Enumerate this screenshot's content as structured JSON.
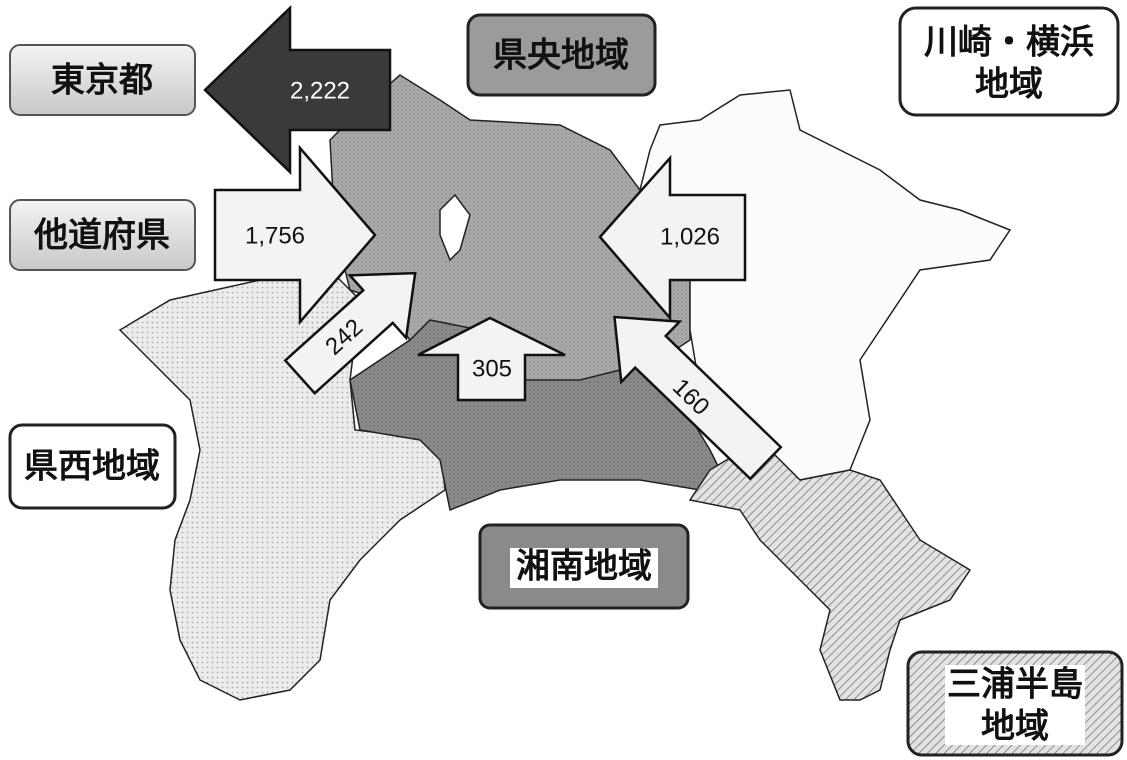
{
  "regions": {
    "tokyo": "東京都",
    "other_prefectures": "他道府県",
    "kenou": "県央地域",
    "kawasaki_yokohama": [
      "川崎・横浜",
      "地域"
    ],
    "kensei": "県西地域",
    "shonan": "湘南地域",
    "miura": [
      "三浦半島",
      "地域"
    ]
  },
  "flows": [
    "2,222",
    "1,756",
    "1,026",
    "242",
    "305",
    "160"
  ]
}
